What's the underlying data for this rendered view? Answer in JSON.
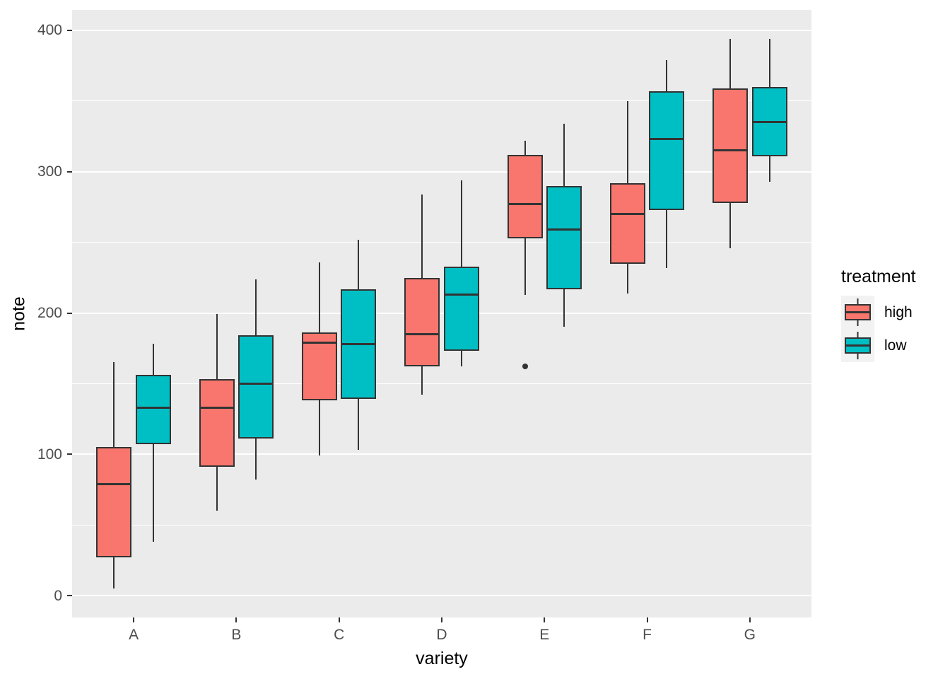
{
  "chart_data": {
    "type": "boxplot",
    "title": "",
    "xlabel": "variety",
    "ylabel": "note",
    "categories": [
      "A",
      "B",
      "C",
      "D",
      "E",
      "F",
      "G"
    ],
    "ylim": [
      -15.5,
      414.5
    ],
    "yticks_major": [
      0,
      100,
      200,
      300,
      400
    ],
    "yticks_minor": [
      50,
      150,
      250,
      350
    ],
    "ytick_labels": [
      "0",
      "100",
      "200",
      "300",
      "400"
    ],
    "grid": true,
    "panel_bg": "#EBEBEB",
    "grid_color": "#FFFFFF",
    "box_stroke": "#333333",
    "axis_text_color": "#4D4D4D",
    "series": [
      {
        "name": "high",
        "color": "#F8766D",
        "boxes": [
          {
            "category": "A",
            "whisker_low": 5,
            "q1": 27,
            "median": 79,
            "q3": 105,
            "whisker_high": 165,
            "outliers": []
          },
          {
            "category": "B",
            "whisker_low": 60,
            "q1": 91,
            "median": 133,
            "q3": 153,
            "whisker_high": 199,
            "outliers": []
          },
          {
            "category": "C",
            "whisker_low": 99,
            "q1": 138,
            "median": 179,
            "q3": 186,
            "whisker_high": 236,
            "outliers": []
          },
          {
            "category": "D",
            "whisker_low": 142,
            "q1": 162,
            "median": 185,
            "q3": 225,
            "whisker_high": 284,
            "outliers": []
          },
          {
            "category": "E",
            "whisker_low": 213,
            "q1": 253,
            "median": 277,
            "q3": 312,
            "whisker_high": 322,
            "outliers": [
              162
            ]
          },
          {
            "category": "F",
            "whisker_low": 214,
            "q1": 235,
            "median": 270,
            "q3": 292,
            "whisker_high": 350,
            "outliers": []
          },
          {
            "category": "G",
            "whisker_low": 246,
            "q1": 278,
            "median": 315,
            "q3": 359,
            "whisker_high": 394,
            "outliers": []
          }
        ]
      },
      {
        "name": "low",
        "color": "#00BFC4",
        "boxes": [
          {
            "category": "A",
            "whisker_low": 38,
            "q1": 107,
            "median": 133,
            "q3": 156,
            "whisker_high": 178,
            "outliers": []
          },
          {
            "category": "B",
            "whisker_low": 82,
            "q1": 111,
            "median": 150,
            "q3": 184,
            "whisker_high": 224,
            "outliers": []
          },
          {
            "category": "C",
            "whisker_low": 103,
            "q1": 139,
            "median": 178,
            "q3": 217,
            "whisker_high": 252,
            "outliers": []
          },
          {
            "category": "D",
            "whisker_low": 162,
            "q1": 173,
            "median": 213,
            "q3": 233,
            "whisker_high": 294,
            "outliers": []
          },
          {
            "category": "E",
            "whisker_low": 190,
            "q1": 217,
            "median": 259,
            "q3": 290,
            "whisker_high": 334,
            "outliers": []
          },
          {
            "category": "F",
            "whisker_low": 232,
            "q1": 273,
            "median": 323,
            "q3": 357,
            "whisker_high": 379,
            "outliers": []
          },
          {
            "category": "G",
            "whisker_low": 293,
            "q1": 311,
            "median": 335,
            "q3": 360,
            "whisker_high": 394,
            "outliers": []
          }
        ]
      }
    ],
    "legend": {
      "title": "treatment",
      "position": "right",
      "entries": [
        {
          "label": "high",
          "color": "#F8766D"
        },
        {
          "label": "low",
          "color": "#00BFC4"
        }
      ]
    }
  }
}
